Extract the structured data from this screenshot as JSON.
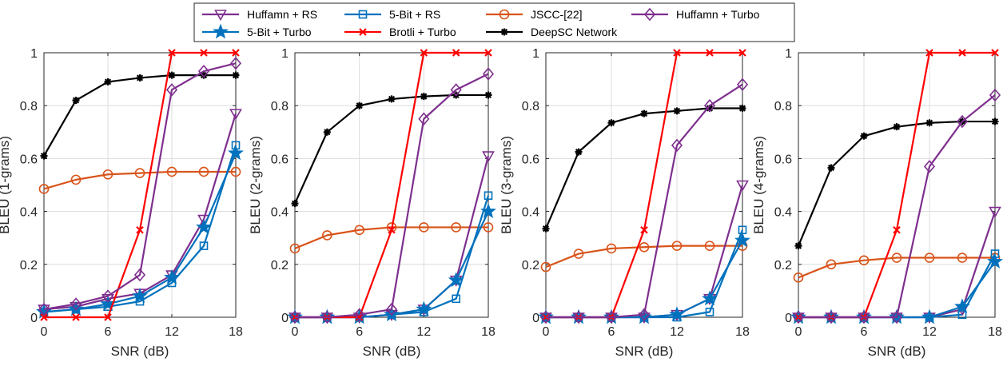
{
  "chart_data": [
    {
      "type": "line",
      "xlabel": "SNR (dB)",
      "ylabel": "BLEU (1-grams)",
      "xlim": [
        0,
        18
      ],
      "ylim": [
        0,
        1
      ],
      "xticks": [
        "0",
        "6",
        "12",
        "18"
      ],
      "yticks": [
        "0",
        "0.2",
        "0.4",
        "0.6",
        "0.8",
        "1"
      ],
      "grid": true,
      "x": [
        0,
        3,
        6,
        9,
        12,
        15,
        18
      ],
      "series": [
        {
          "name": "Huffamn + RS",
          "values": [
            0.03,
            0.04,
            0.07,
            0.09,
            0.16,
            0.37,
            0.77
          ]
        },
        {
          "name": "5-Bit + RS",
          "values": [
            0.02,
            0.03,
            0.04,
            0.06,
            0.13,
            0.27,
            0.65
          ]
        },
        {
          "name": "JSCC-[22]",
          "values": [
            0.485,
            0.52,
            0.54,
            0.545,
            0.55,
            0.55,
            0.55
          ]
        },
        {
          "name": "Huffamn + Turbo",
          "values": [
            0.03,
            0.05,
            0.08,
            0.16,
            0.86,
            0.93,
            0.96
          ]
        },
        {
          "name": "5-Bit + Turbo",
          "values": [
            0.02,
            0.03,
            0.05,
            0.08,
            0.15,
            0.34,
            0.62
          ]
        },
        {
          "name": "Brotli + Turbo",
          "values": [
            0,
            0,
            0,
            0.33,
            1,
            1,
            1
          ]
        },
        {
          "name": "DeepSC Network",
          "values": [
            0.61,
            0.82,
            0.89,
            0.905,
            0.915,
            0.915,
            0.915
          ]
        }
      ]
    },
    {
      "type": "line",
      "xlabel": "SNR (dB)",
      "ylabel": "BLEU (2-grams)",
      "xlim": [
        0,
        18
      ],
      "ylim": [
        0,
        1
      ],
      "xticks": [
        "0",
        "6",
        "12",
        "18"
      ],
      "yticks": [
        "0",
        "0.2",
        "0.4",
        "0.6",
        "0.8",
        "1"
      ],
      "grid": true,
      "x": [
        0,
        3,
        6,
        9,
        12,
        15,
        18
      ],
      "series": [
        {
          "name": "Huffamn + RS",
          "values": [
            0,
            0,
            0,
            0.01,
            0.03,
            0.14,
            0.61
          ]
        },
        {
          "name": "5-Bit + RS",
          "values": [
            0,
            0,
            0,
            0.01,
            0.02,
            0.07,
            0.46
          ]
        },
        {
          "name": "JSCC-[22]",
          "values": [
            0.26,
            0.31,
            0.33,
            0.34,
            0.34,
            0.34,
            0.34
          ]
        },
        {
          "name": "Huffamn + Turbo",
          "values": [
            0,
            0,
            0.01,
            0.03,
            0.75,
            0.86,
            0.92
          ]
        },
        {
          "name": "5-Bit + Turbo",
          "values": [
            0,
            0,
            0,
            0.01,
            0.03,
            0.14,
            0.4
          ]
        },
        {
          "name": "Brotli + Turbo",
          "values": [
            0,
            0,
            0,
            0.33,
            1,
            1,
            1
          ]
        },
        {
          "name": "DeepSC Network",
          "values": [
            0.43,
            0.7,
            0.8,
            0.825,
            0.835,
            0.84,
            0.84
          ]
        }
      ]
    },
    {
      "type": "line",
      "xlabel": "SNR (dB)",
      "ylabel": "BLEU (3-grams)",
      "xlim": [
        0,
        18
      ],
      "ylim": [
        0,
        1
      ],
      "xticks": [
        "0",
        "6",
        "12",
        "18"
      ],
      "yticks": [
        "0",
        "0.2",
        "0.4",
        "0.6",
        "0.8",
        "1"
      ],
      "grid": true,
      "x": [
        0,
        3,
        6,
        9,
        12,
        15,
        18
      ],
      "series": [
        {
          "name": "Huffamn + RS",
          "values": [
            0,
            0,
            0,
            0,
            0.01,
            0.07,
            0.5
          ]
        },
        {
          "name": "5-Bit + RS",
          "values": [
            0,
            0,
            0,
            0,
            0,
            0.02,
            0.33
          ]
        },
        {
          "name": "JSCC-[22]",
          "values": [
            0.19,
            0.24,
            0.26,
            0.265,
            0.27,
            0.27,
            0.27
          ]
        },
        {
          "name": "Huffamn + Turbo",
          "values": [
            0,
            0,
            0,
            0.01,
            0.65,
            0.8,
            0.88
          ]
        },
        {
          "name": "5-Bit + Turbo",
          "values": [
            0,
            0,
            0,
            0,
            0.01,
            0.07,
            0.29
          ]
        },
        {
          "name": "Brotli + Turbo",
          "values": [
            0,
            0,
            0,
            0.33,
            1,
            1,
            1
          ]
        },
        {
          "name": "DeepSC Network",
          "values": [
            0.335,
            0.625,
            0.735,
            0.77,
            0.78,
            0.79,
            0.79
          ]
        }
      ]
    },
    {
      "type": "line",
      "xlabel": "SNR (dB)",
      "ylabel": "BLEU (4-grams)",
      "xlim": [
        0,
        18
      ],
      "ylim": [
        0,
        1
      ],
      "xticks": [
        "0",
        "6",
        "12",
        "18"
      ],
      "yticks": [
        "0",
        "0.2",
        "0.4",
        "0.6",
        "0.8",
        "1"
      ],
      "grid": true,
      "x": [
        0,
        3,
        6,
        9,
        12,
        15,
        18
      ],
      "series": [
        {
          "name": "Huffamn + RS",
          "values": [
            0,
            0,
            0,
            0,
            0,
            0.03,
            0.4
          ]
        },
        {
          "name": "5-Bit + RS",
          "values": [
            0,
            0,
            0,
            0,
            0,
            0.01,
            0.24
          ]
        },
        {
          "name": "JSCC-[22]",
          "values": [
            0.15,
            0.2,
            0.215,
            0.225,
            0.225,
            0.225,
            0.225
          ]
        },
        {
          "name": "Huffamn + Turbo",
          "values": [
            0,
            0,
            0,
            0,
            0.57,
            0.74,
            0.84
          ]
        },
        {
          "name": "5-Bit + Turbo",
          "values": [
            0,
            0,
            0,
            0,
            0,
            0.04,
            0.21
          ]
        },
        {
          "name": "Brotli + Turbo",
          "values": [
            0,
            0,
            0,
            0.33,
            1,
            1,
            1
          ]
        },
        {
          "name": "DeepSC Network",
          "values": [
            0.27,
            0.565,
            0.685,
            0.72,
            0.735,
            0.74,
            0.74
          ]
        }
      ]
    }
  ],
  "legend": {
    "placement": "top-center",
    "entries": [
      {
        "label": "Huffamn + RS",
        "color": "#7E2F8E",
        "marker": "triangle-down"
      },
      {
        "label": "5-Bit + RS",
        "color": "#0072BD",
        "marker": "square"
      },
      {
        "label": "JSCC-[22]",
        "color": "#D95319",
        "marker": "circle"
      },
      {
        "label": "Huffamn + Turbo",
        "color": "#7E2F8E",
        "marker": "diamond"
      },
      {
        "label": "5-Bit + Turbo",
        "color": "#0072BD",
        "marker": "star"
      },
      {
        "label": "Brotli + Turbo",
        "color": "#FF0000",
        "marker": "cross"
      },
      {
        "label": "DeepSC Network",
        "color": "#000000",
        "marker": "asterisk"
      }
    ]
  }
}
